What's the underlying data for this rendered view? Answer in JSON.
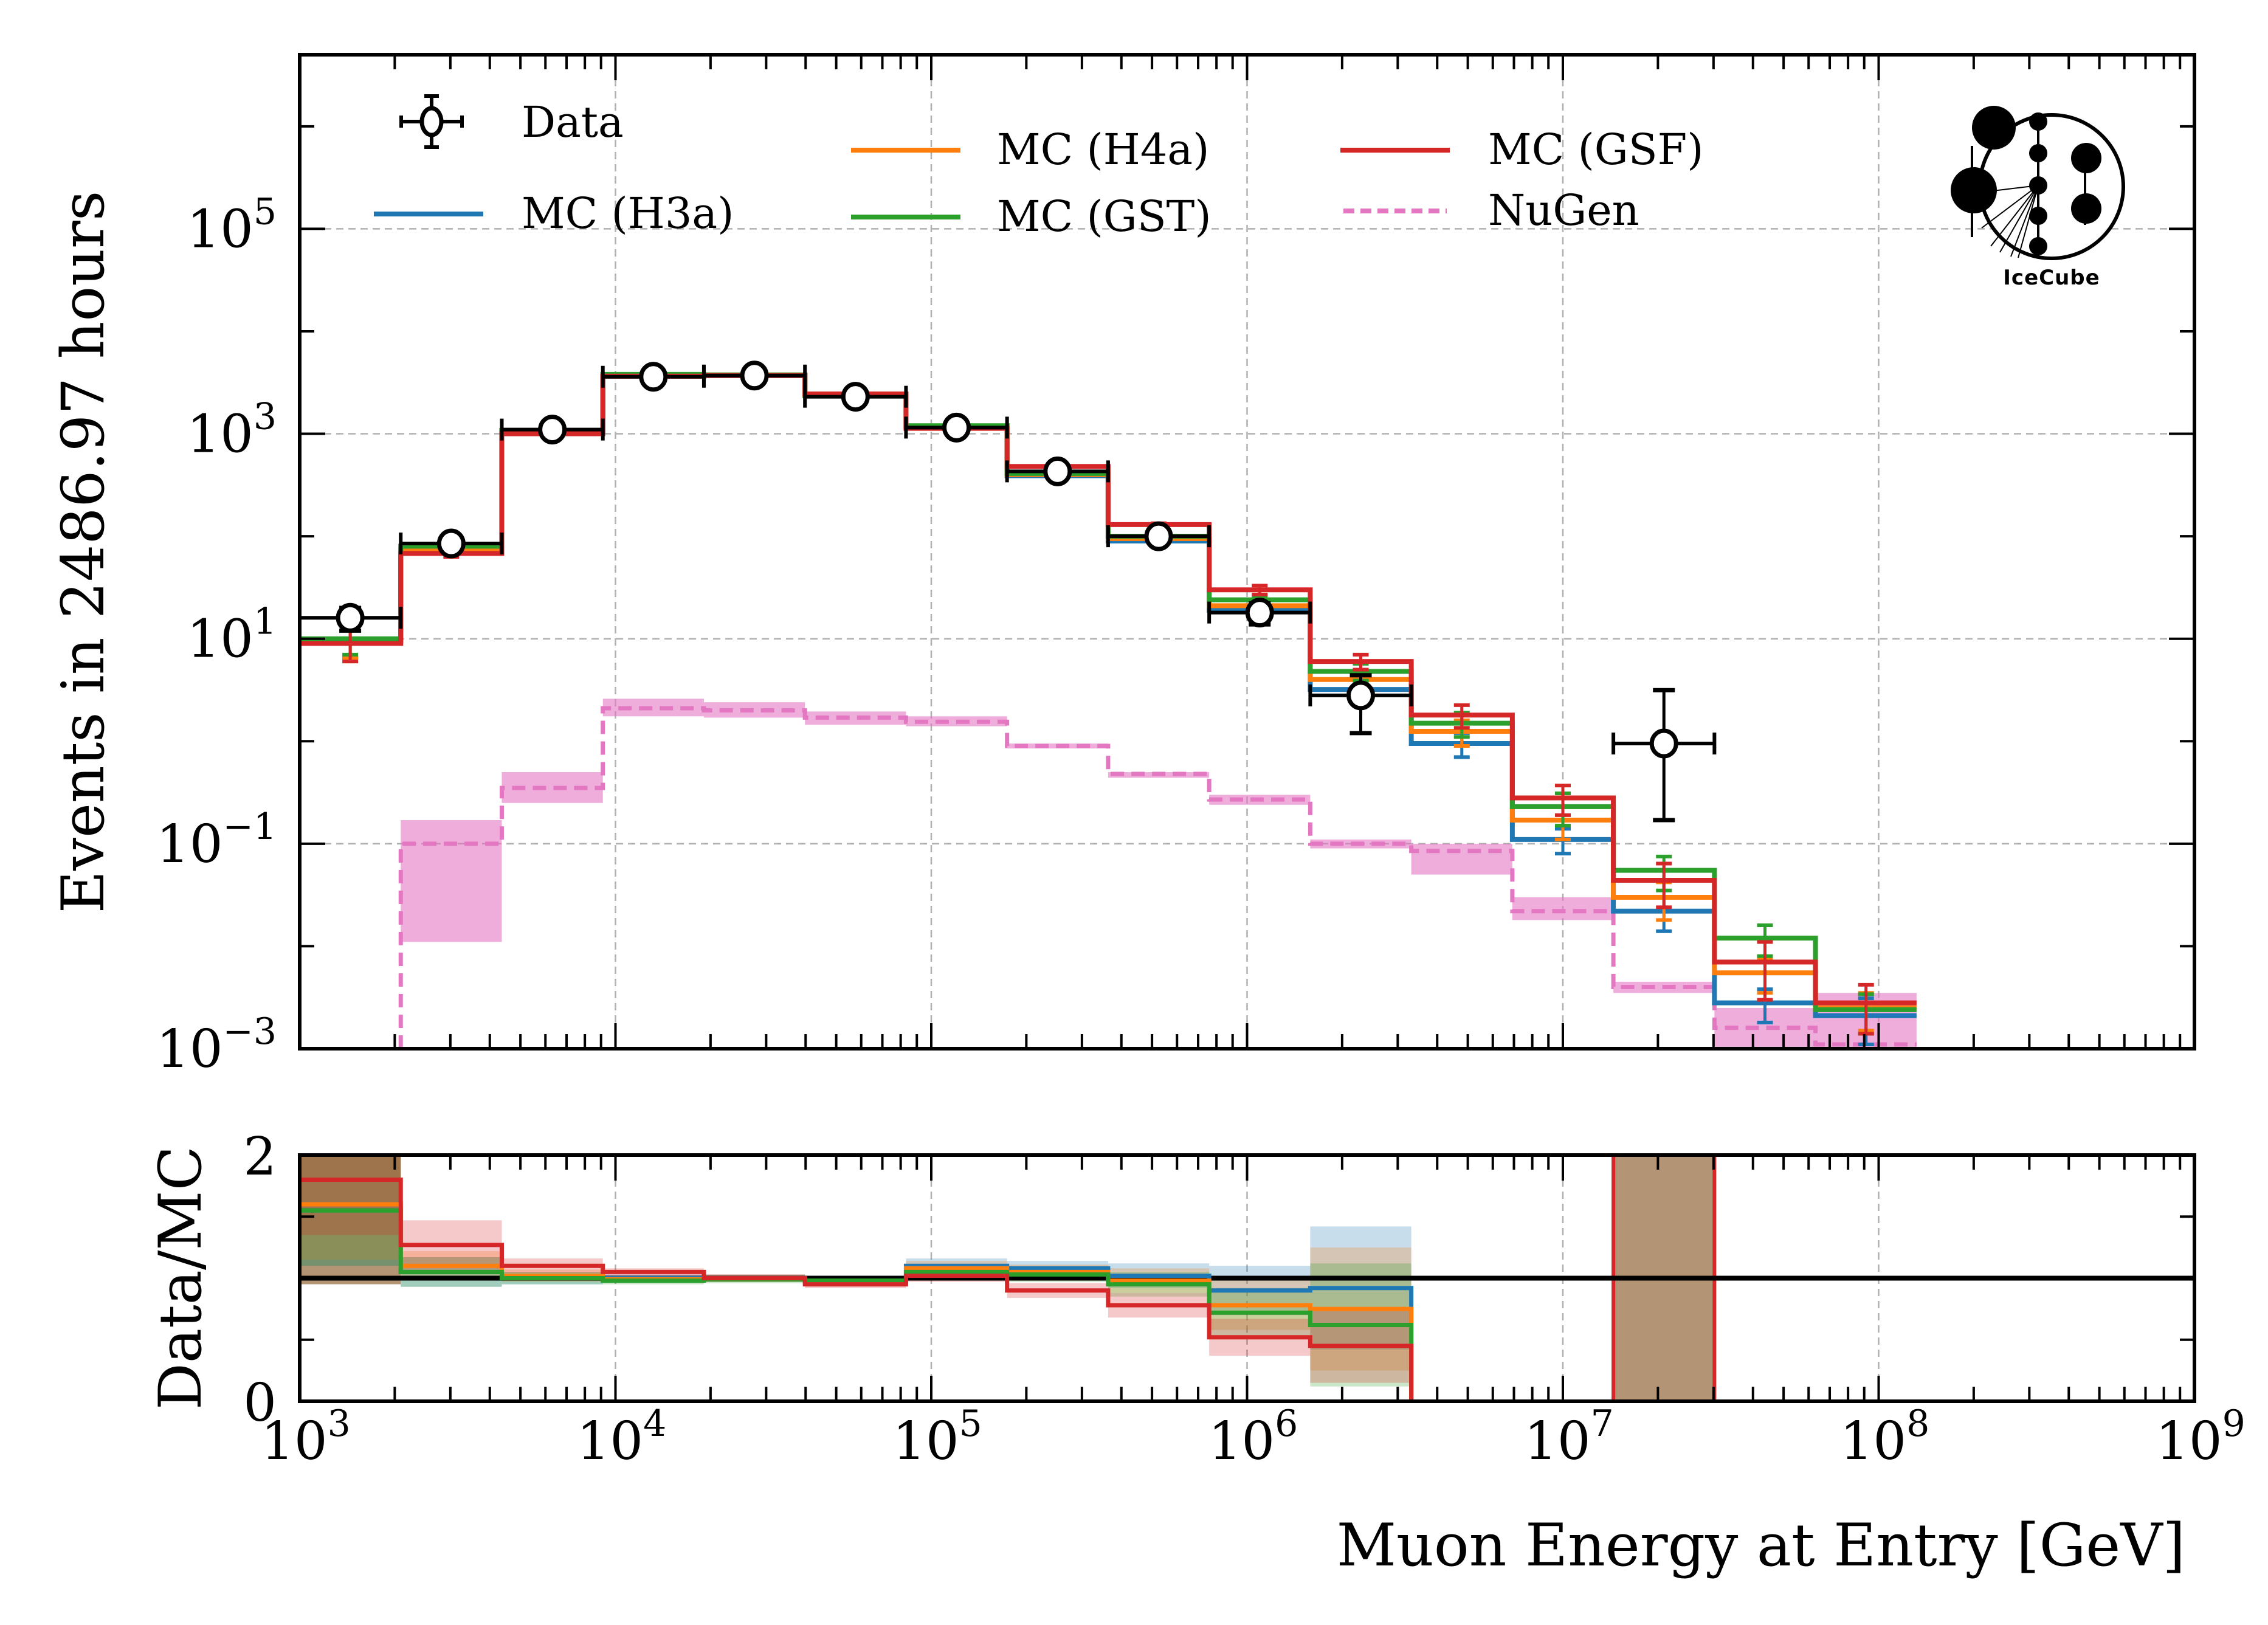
{
  "chart_data": {
    "type": "line",
    "subtype": "step-histogram-with-ratio-panel",
    "colors": {
      "data": "#000000",
      "H3a": "#1f77b4",
      "H4a": "#ff7f0e",
      "GST": "#2ca02c",
      "GSF": "#d62728",
      "NuGen": "#e377c2",
      "grid": "#b0b0b0"
    },
    "main_panel": {
      "ylabel": "Events in 2486.97 hours",
      "yscale": "log",
      "ylim": [
        0.001,
        5000000
      ],
      "yticks": [
        {
          "base": "10",
          "exp": "5",
          "value": 100000
        },
        {
          "base": "10",
          "exp": "3",
          "value": 1000
        },
        {
          "base": "10",
          "exp": "1",
          "value": 10
        },
        {
          "base": "10",
          "exp": "−1",
          "value": 0.1
        },
        {
          "base": "10",
          "exp": "−3",
          "value": 0.001
        }
      ],
      "grid": true,
      "legend": {
        "placement": "top-left",
        "entries": [
          {
            "label": "Data",
            "key": "data",
            "style": "marker-errorbar"
          },
          {
            "label": "MC (H3a)",
            "key": "H3a",
            "style": "line"
          },
          {
            "label": "MC (H4a)",
            "key": "H4a",
            "style": "line"
          },
          {
            "label": "MC (GST)",
            "key": "GST",
            "style": "line"
          },
          {
            "label": "MC (GSF)",
            "key": "GSF",
            "style": "line"
          },
          {
            "label": "NuGen",
            "key": "NuGen",
            "style": "dashed"
          }
        ]
      }
    },
    "ratio_panel": {
      "ylabel": "Data/MC",
      "ylim": [
        0,
        2
      ],
      "yticks": [
        {
          "label": "0",
          "value": 0
        },
        {
          "label": "2",
          "value": 2
        }
      ],
      "reference_line": 1
    },
    "xlabel": "Muon Energy at Entry [GeV]",
    "xscale": "log",
    "xlim": [
      1000,
      1000000000
    ],
    "xticks": [
      {
        "base": "10",
        "exp": "3",
        "value": 1000
      },
      {
        "base": "10",
        "exp": "4",
        "value": 10000
      },
      {
        "base": "10",
        "exp": "5",
        "value": 100000
      },
      {
        "base": "10",
        "exp": "6",
        "value": 1000000
      },
      {
        "base": "10",
        "exp": "7",
        "value": 10000000
      },
      {
        "base": "10",
        "exp": "8",
        "value": 100000000
      },
      {
        "base": "10",
        "exp": "9",
        "value": 1000000000
      }
    ],
    "bin_edges_log10": [
      3.0,
      3.32,
      3.64,
      3.96,
      4.28,
      4.6,
      4.92,
      5.24,
      5.56,
      5.88,
      6.2,
      6.52,
      6.84,
      7.16,
      7.48,
      7.8,
      8.12
    ],
    "data": {
      "values": [
        16,
        85,
        1100,
        3600,
        3700,
        2300,
        1150,
        430,
        100,
        18,
        2.8,
        null,
        null,
        0.95,
        null,
        null
      ],
      "err_low": [
        4,
        9,
        33,
        60,
        61,
        48,
        34,
        21,
        10,
        4.2,
        1.6,
        null,
        null,
        0.78,
        null,
        null
      ],
      "err_high": [
        4,
        9,
        33,
        60,
        61,
        48,
        34,
        21,
        10,
        4.2,
        1.6,
        null,
        null,
        2.2,
        null,
        null
      ]
    },
    "series": [
      {
        "name": "MC (H3a)",
        "key": "H3a",
        "values": [
          9.5,
          75,
          1050,
          3650,
          3700,
          2350,
          1180,
          390,
          90,
          19,
          3.2,
          0.95,
          0.11,
          0.022,
          0.0028,
          0.0021
        ],
        "err": [
          3,
          5,
          10,
          20,
          20,
          15,
          10,
          8,
          4,
          2,
          0.6,
          0.25,
          0.03,
          0.008,
          0.001,
          0.001
        ]
      },
      {
        "name": "MC (H4a)",
        "key": "H4a",
        "values": [
          9.5,
          72,
          1030,
          3650,
          3750,
          2380,
          1180,
          400,
          95,
          21,
          4.0,
          1.25,
          0.17,
          0.03,
          0.0055,
          0.0025
        ],
        "err": [
          3,
          5,
          10,
          20,
          20,
          15,
          10,
          8,
          4,
          2,
          0.8,
          0.35,
          0.06,
          0.012,
          0.002,
          0.001
        ]
      },
      {
        "name": "MC (GST)",
        "key": "GST",
        "values": [
          10,
          80,
          1080,
          3800,
          3750,
          2400,
          1200,
          410,
          100,
          24,
          4.8,
          1.5,
          0.23,
          0.055,
          0.012,
          0.0024
        ],
        "err": [
          3,
          5,
          10,
          20,
          20,
          15,
          10,
          8,
          4,
          2,
          0.9,
          0.4,
          0.08,
          0.02,
          0.004,
          0.001
        ]
      },
      {
        "name": "MC (GSF)",
        "key": "GSF",
        "values": [
          9,
          68,
          1000,
          3650,
          3700,
          2450,
          1130,
          480,
          130,
          30,
          6.0,
          1.8,
          0.28,
          0.044,
          0.007,
          0.0028
        ],
        "err": [
          3,
          5,
          10,
          20,
          20,
          15,
          10,
          8,
          4,
          3,
          1.0,
          0.45,
          0.09,
          0.02,
          0.004,
          0.0014
        ]
      },
      {
        "name": "NuGen",
        "key": "NuGen",
        "values": [
          null,
          0.1,
          0.35,
          2.1,
          2.0,
          1.7,
          1.55,
          0.9,
          0.48,
          0.27,
          0.1,
          0.085,
          0.022,
          0.004,
          0.0016,
          0.0011
        ],
        "band_low": [
          null,
          0.011,
          0.25,
          1.75,
          1.7,
          1.45,
          1.4,
          0.85,
          0.44,
          0.24,
          0.09,
          0.05,
          0.018,
          0.0035,
          0.001,
          0.001
        ],
        "band_high": [
          null,
          0.17,
          0.5,
          2.6,
          2.4,
          1.95,
          1.75,
          0.95,
          0.5,
          0.3,
          0.11,
          0.1,
          0.03,
          0.0045,
          0.0025,
          0.0035
        ]
      }
    ],
    "ratios": [
      {
        "key": "H3a",
        "values": [
          1.55,
          1.05,
          1.0,
          1.0,
          1.0,
          0.98,
          1.1,
          1.08,
          1.02,
          0.9,
          0.92,
          null,
          null,
          null,
          null,
          null
        ],
        "band": [
          0.45,
          0.12,
          0.05,
          0.03,
          0.03,
          0.03,
          0.06,
          0.06,
          0.1,
          0.2,
          0.5,
          null,
          null,
          null,
          null,
          null
        ]
      },
      {
        "key": "H4a",
        "values": [
          1.6,
          1.1,
          1.02,
          0.99,
          1.0,
          0.97,
          1.08,
          1.05,
          0.98,
          0.78,
          0.75,
          null,
          null,
          null,
          null,
          null
        ],
        "band": [
          0.45,
          0.12,
          0.05,
          0.03,
          0.03,
          0.03,
          0.06,
          0.06,
          0.1,
          0.2,
          0.5,
          null,
          null,
          null,
          null,
          null
        ]
      },
      {
        "key": "GST",
        "values": [
          1.55,
          1.05,
          1.0,
          0.98,
          0.99,
          0.98,
          1.05,
          1.03,
          0.95,
          0.72,
          0.62,
          null,
          null,
          null,
          null,
          null
        ],
        "band": [
          0.45,
          0.12,
          0.05,
          0.03,
          0.03,
          0.03,
          0.06,
          0.06,
          0.1,
          0.2,
          0.5,
          null,
          null,
          null,
          null,
          null
        ]
      },
      {
        "key": "GSF",
        "values": [
          1.8,
          1.27,
          1.1,
          1.05,
          1.0,
          0.95,
          1.02,
          0.9,
          0.78,
          0.52,
          0.45,
          null,
          null,
          null,
          null,
          null
        ],
        "band": [
          0.45,
          0.2,
          0.06,
          0.03,
          0.03,
          0.03,
          0.05,
          0.06,
          0.1,
          0.15,
          0.3,
          null,
          null,
          null,
          null,
          null
        ]
      }
    ],
    "ratio_full_band_bins": [
      13
    ]
  },
  "logo": {
    "text": "IceCube"
  }
}
